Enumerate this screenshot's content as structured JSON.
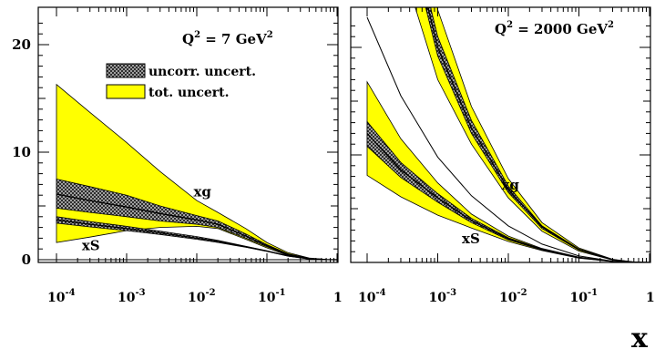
{
  "chart_data": [
    {
      "type": "area",
      "panel": "left",
      "scale_label": {
        "base": "Q",
        "sup": "2",
        "rest": " = 7 GeV",
        "unit_sup": "2"
      },
      "x_scale": "log",
      "xlim": [
        0.0001,
        1
      ],
      "ylim": [
        -1,
        23
      ],
      "x_ticks": [
        {
          "value": 0.0001,
          "base": "10",
          "exp": "-4"
        },
        {
          "value": 0.001,
          "base": "10",
          "exp": "-3"
        },
        {
          "value": 0.01,
          "base": "10",
          "exp": "-2"
        },
        {
          "value": 0.1,
          "base": "10",
          "exp": "-1"
        },
        {
          "value": 1,
          "base": "1",
          "exp": ""
        }
      ],
      "y_ticks": [
        {
          "value": 0,
          "label": "0"
        },
        {
          "value": 10,
          "label": "10"
        },
        {
          "value": 20,
          "label": "20"
        }
      ],
      "legend": {
        "placement": "top-center",
        "entries": [
          {
            "label": "uncorr. uncert.",
            "style": "hatched"
          },
          {
            "label": "tot. uncert.",
            "style": "yellow"
          }
        ]
      },
      "colors": {
        "total": "#ffff00",
        "uncorr": "#555555"
      },
      "series": [
        {
          "name": "xg",
          "label_at": [
            0.009,
            5.9
          ],
          "x": [
            0.0001,
            0.0003,
            0.001,
            0.003,
            0.01,
            0.02,
            0.05,
            0.1,
            0.2,
            0.4,
            0.7,
            1
          ],
          "central": [
            6.1,
            5.5,
            4.9,
            4.3,
            3.7,
            3.3,
            2.2,
            1.3,
            0.5,
            0.12,
            0.01,
            0
          ],
          "tot_upper": [
            16.3,
            13.7,
            10.9,
            8.2,
            5.5,
            4.4,
            2.9,
            1.6,
            0.65,
            0.15,
            0.02,
            0
          ],
          "tot_lower": [
            1.6,
            2.1,
            2.7,
            3.0,
            3.1,
            2.9,
            1.9,
            1.1,
            0.4,
            0.1,
            0.01,
            0
          ],
          "unc_upper": [
            7.5,
            6.8,
            6.0,
            5.0,
            4.1,
            3.6,
            2.4,
            1.4,
            0.55,
            0.13,
            0.015,
            0
          ],
          "unc_lower": [
            4.8,
            4.4,
            4.0,
            3.6,
            3.3,
            3.0,
            2.0,
            1.2,
            0.45,
            0.11,
            0.01,
            0
          ]
        },
        {
          "name": "xS",
          "label_at": [
            0.00023,
            0.9
          ],
          "x": [
            0.0001,
            0.0003,
            0.001,
            0.003,
            0.01,
            0.02,
            0.05,
            0.1,
            0.2,
            0.4,
            0.7,
            1
          ],
          "central": [
            3.7,
            3.3,
            2.9,
            2.5,
            2.0,
            1.7,
            1.2,
            0.8,
            0.35,
            0.08,
            0.01,
            0
          ],
          "unc_upper": [
            4.0,
            3.55,
            3.1,
            2.65,
            2.15,
            1.8,
            1.25,
            0.83,
            0.37,
            0.09,
            0.01,
            0
          ],
          "unc_lower": [
            3.4,
            3.05,
            2.7,
            2.35,
            1.9,
            1.6,
            1.15,
            0.77,
            0.33,
            0.07,
            0.01,
            0
          ]
        }
      ]
    },
    {
      "type": "area",
      "panel": "right",
      "scale_label": {
        "base": "Q",
        "sup": "2",
        "rest": " = 2000 GeV",
        "unit_sup": "2"
      },
      "x_scale": "log",
      "xlim": [
        0.0001,
        1
      ],
      "ylim": [
        -1,
        23
      ],
      "x_ticks": [
        {
          "value": 0.0001,
          "base": "10",
          "exp": "-4"
        },
        {
          "value": 0.001,
          "base": "10",
          "exp": "-3"
        },
        {
          "value": 0.01,
          "base": "10",
          "exp": "-2"
        },
        {
          "value": 0.1,
          "base": "10",
          "exp": "-1"
        },
        {
          "value": 1,
          "base": "1",
          "exp": ""
        }
      ],
      "colors": {
        "total": "#ffff00",
        "uncorr": "#555555"
      },
      "series": [
        {
          "name": "xg",
          "label_at": [
            0.008,
            6.8
          ],
          "x": [
            0.0003,
            0.001,
            0.003,
            0.01,
            0.03,
            0.1,
            0.3,
            0.6,
            1
          ],
          "central": [
            34,
            20,
            12.5,
            6.8,
            3.3,
            1.2,
            0.25,
            0.03,
            0
          ],
          "tot_upper": [
            40,
            23.5,
            14.5,
            7.8,
            3.7,
            1.35,
            0.3,
            0.04,
            0
          ],
          "tot_lower": [
            28,
            17,
            11.0,
            6.0,
            2.9,
            1.05,
            0.22,
            0.025,
            0
          ],
          "unc_upper": [
            35,
            21,
            13.2,
            7.1,
            3.4,
            1.25,
            0.27,
            0.032,
            0
          ],
          "unc_lower": [
            33,
            19.2,
            12.0,
            6.5,
            3.15,
            1.15,
            0.24,
            0.028,
            0
          ]
        },
        {
          "name": "xS",
          "label_at": [
            0.0022,
            1.8
          ],
          "x": [
            0.0001,
            0.0003,
            0.001,
            0.003,
            0.01,
            0.03,
            0.1,
            0.3,
            0.6,
            1
          ],
          "central": [
            12.0,
            8.6,
            6.0,
            3.9,
            2.2,
            1.2,
            0.45,
            0.09,
            0.01,
            0
          ],
          "tot_upper": [
            16.8,
            11.5,
            7.4,
            4.5,
            2.45,
            1.3,
            0.5,
            0.1,
            0.015,
            0
          ],
          "tot_lower": [
            8.1,
            6.1,
            4.4,
            3.2,
            1.95,
            1.1,
            0.4,
            0.08,
            0.01,
            0
          ],
          "unc_upper": [
            13.1,
            9.3,
            6.4,
            4.1,
            2.3,
            1.25,
            0.47,
            0.095,
            0.012,
            0
          ],
          "unc_lower": [
            10.8,
            7.9,
            5.6,
            3.7,
            2.1,
            1.15,
            0.43,
            0.085,
            0.009,
            0
          ]
        },
        {
          "name": "",
          "style": "line",
          "x": [
            0.0001,
            0.0003,
            0.001,
            0.003,
            0.01,
            0.03,
            0.1,
            0.3,
            0.6,
            1
          ],
          "central": [
            22.8,
            15.5,
            9.8,
            6.2,
            3.4,
            1.7,
            0.6,
            0.12,
            0.015,
            0
          ]
        }
      ]
    }
  ],
  "x_axis_symbol": "x"
}
